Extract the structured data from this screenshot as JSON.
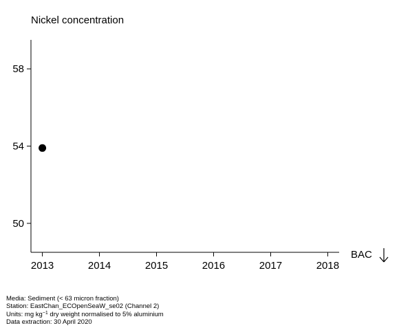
{
  "chart_data": {
    "type": "scatter",
    "title": "Nickel concentration",
    "x_ticks": [
      "2013",
      "2014",
      "2015",
      "2016",
      "2017",
      "2018"
    ],
    "xlim": [
      2012.8,
      2018.2
    ],
    "y_ticks": [
      "50",
      "54",
      "58"
    ],
    "ylim": [
      48.5,
      59.5
    ],
    "grid": false,
    "points": [
      {
        "x": 2013,
        "y": 53.9
      }
    ],
    "point_color": "#000000",
    "reference_label": "BAC",
    "reference_marker": "down-arrow-icon"
  },
  "footer": {
    "media": "Media: Sediment (< 63 micron fraction)",
    "station": "Station: EastChan_ECOpenSeaW_se02 (Channel 2)",
    "units_prefix": "Units:  mg kg",
    "units_exponent": "−1",
    "units_suffix": " dry weight normalised to 5% aluminium",
    "extraction": "Data extraction: 30 April 2020"
  }
}
